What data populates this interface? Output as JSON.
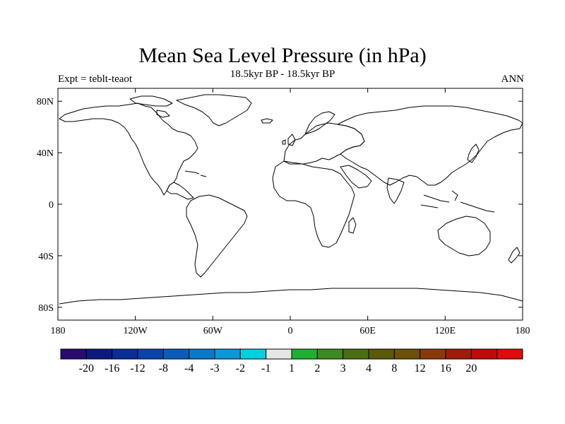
{
  "title": "Mean Sea Level Pressure (in hPa)",
  "subtitle": "18.5kyr BP - 18.5kyr BP",
  "left_label": "Expt = teblt-teaot",
  "right_label": "ANN",
  "map": {
    "projection": "cylindrical equidistant",
    "lon_range": [
      -180,
      180
    ],
    "lat_range": [
      -90,
      90
    ],
    "lat_ticks": [
      {
        "value": 80,
        "label": "80N"
      },
      {
        "value": 40,
        "label": "40N"
      },
      {
        "value": 0,
        "label": "0"
      },
      {
        "value": -40,
        "label": "40S"
      },
      {
        "value": -80,
        "label": "80S"
      }
    ],
    "lon_ticks": [
      {
        "value": -180,
        "label": "180"
      },
      {
        "value": -120,
        "label": "120W"
      },
      {
        "value": -60,
        "label": "60W"
      },
      {
        "value": 0,
        "label": "0"
      },
      {
        "value": 60,
        "label": "60E"
      },
      {
        "value": 120,
        "label": "120E"
      },
      {
        "value": 180,
        "label": "180"
      }
    ],
    "coastline_color": "#000000",
    "fill": "none (difference field is zero everywhere)"
  },
  "colorbar": {
    "colors": [
      "#2a0a70",
      "#0c1a80",
      "#0a2e96",
      "#0a44aa",
      "#0a5cb8",
      "#0a78c8",
      "#0a98d8",
      "#00d0e0",
      "#e6e6e6",
      "#20b030",
      "#3c8a20",
      "#4a6e14",
      "#5a5a0a",
      "#6e500a",
      "#8a3a0a",
      "#a01c0a",
      "#c00a0a",
      "#e00a0a"
    ],
    "labels": [
      "-20",
      "-16",
      "-12",
      "-8",
      "-4",
      "-3",
      "-2",
      "-1",
      "1",
      "2",
      "3",
      "4",
      "8",
      "12",
      "16",
      "20"
    ]
  }
}
